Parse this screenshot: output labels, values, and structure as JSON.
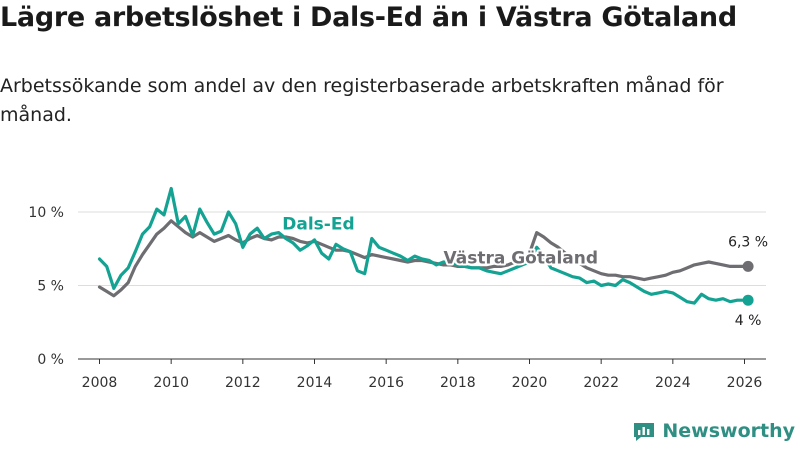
{
  "title": "Lägre arbetslöshet i Dals-Ed än i Västra Götaland",
  "subtitle": "Arbetssökande som andel av den registerbaserade arbetskraften månad för månad.",
  "brand": {
    "name": "Newsworthy"
  },
  "colors": {
    "dals_ed": "#14a393",
    "vastra_gotaland": "#6e6e72",
    "grid": "#dddddd",
    "axis": "#333333",
    "brand": "#2f8f83"
  },
  "chart_data": {
    "type": "line",
    "title": "Lägre arbetslöshet i Dals-Ed än i Västra Götaland",
    "xlabel": "",
    "ylabel": "",
    "xlim": [
      2007.4,
      2026.6
    ],
    "ylim": [
      0,
      12
    ],
    "x_ticks": [
      2008,
      2010,
      2012,
      2014,
      2016,
      2018,
      2020,
      2022,
      2024,
      2026
    ],
    "x_tick_labels": [
      "2008",
      "2010",
      "2012",
      "2014",
      "2016",
      "2018",
      "2020",
      "2022",
      "2024",
      "2026"
    ],
    "y_ticks": [
      0,
      5,
      10
    ],
    "y_tick_labels": [
      "0 %",
      "5 %",
      "10 %"
    ],
    "grid": true,
    "series": [
      {
        "name": "Dals-Ed",
        "label": "Dals-Ed",
        "end_label": "4 %",
        "x": [
          2008.0,
          2008.2,
          2008.4,
          2008.6,
          2008.8,
          2009.0,
          2009.2,
          2009.4,
          2009.6,
          2009.8,
          2010.0,
          2010.2,
          2010.4,
          2010.6,
          2010.8,
          2011.0,
          2011.2,
          2011.4,
          2011.6,
          2011.8,
          2012.0,
          2012.2,
          2012.4,
          2012.6,
          2012.8,
          2013.0,
          2013.2,
          2013.4,
          2013.6,
          2013.8,
          2014.0,
          2014.2,
          2014.4,
          2014.6,
          2014.8,
          2015.0,
          2015.2,
          2015.4,
          2015.6,
          2015.8,
          2016.0,
          2016.2,
          2016.4,
          2016.6,
          2016.8,
          2017.0,
          2017.2,
          2017.4,
          2017.6,
          2017.8,
          2018.0,
          2018.2,
          2018.4,
          2018.6,
          2018.8,
          2019.0,
          2019.2,
          2019.4,
          2019.6,
          2019.8,
          2020.0,
          2020.2,
          2020.4,
          2020.6,
          2020.8,
          2021.0,
          2021.2,
          2021.4,
          2021.6,
          2021.8,
          2022.0,
          2022.2,
          2022.4,
          2022.6,
          2022.8,
          2023.0,
          2023.2,
          2023.4,
          2023.6,
          2023.8,
          2024.0,
          2024.2,
          2024.4,
          2024.6,
          2024.8,
          2025.0,
          2025.2,
          2025.4,
          2025.6,
          2025.8,
          2026.1
        ],
        "y": [
          6.8,
          6.3,
          4.8,
          5.7,
          6.2,
          7.3,
          8.5,
          9.0,
          10.2,
          9.8,
          11.6,
          9.2,
          9.7,
          8.4,
          10.2,
          9.3,
          8.5,
          8.7,
          10.0,
          9.2,
          7.6,
          8.5,
          8.9,
          8.2,
          8.5,
          8.6,
          8.2,
          7.9,
          7.4,
          7.7,
          8.1,
          7.2,
          6.8,
          7.8,
          7.5,
          7.3,
          6.0,
          5.8,
          8.2,
          7.6,
          7.4,
          7.2,
          7.0,
          6.7,
          7.0,
          6.8,
          6.7,
          6.4,
          6.6,
          6.5,
          6.4,
          6.3,
          6.2,
          6.2,
          6.0,
          5.9,
          5.8,
          6.0,
          6.2,
          6.4,
          6.6,
          7.6,
          7.0,
          6.2,
          6.0,
          5.8,
          5.6,
          5.5,
          5.2,
          5.3,
          5.0,
          5.1,
          5.0,
          5.4,
          5.2,
          4.9,
          4.6,
          4.4,
          4.5,
          4.6,
          4.5,
          4.2,
          3.9,
          3.8,
          4.4,
          4.1,
          4.0,
          4.1,
          3.9,
          4.0,
          4.0
        ]
      },
      {
        "name": "Västra Götaland",
        "label": "Västra Götaland",
        "end_label": "6,3 %",
        "x": [
          2008.0,
          2008.2,
          2008.4,
          2008.6,
          2008.8,
          2009.0,
          2009.2,
          2009.4,
          2009.6,
          2009.8,
          2010.0,
          2010.2,
          2010.4,
          2010.6,
          2010.8,
          2011.0,
          2011.2,
          2011.4,
          2011.6,
          2011.8,
          2012.0,
          2012.2,
          2012.4,
          2012.6,
          2012.8,
          2013.0,
          2013.2,
          2013.4,
          2013.6,
          2013.8,
          2014.0,
          2014.2,
          2014.4,
          2014.6,
          2014.8,
          2015.0,
          2015.2,
          2015.4,
          2015.6,
          2015.8,
          2016.0,
          2016.2,
          2016.4,
          2016.6,
          2016.8,
          2017.0,
          2017.2,
          2017.4,
          2017.6,
          2017.8,
          2018.0,
          2018.2,
          2018.4,
          2018.6,
          2018.8,
          2019.0,
          2019.2,
          2019.4,
          2019.6,
          2019.8,
          2020.0,
          2020.2,
          2020.4,
          2020.6,
          2020.8,
          2021.0,
          2021.2,
          2021.4,
          2021.6,
          2021.8,
          2022.0,
          2022.2,
          2022.4,
          2022.6,
          2022.8,
          2023.0,
          2023.2,
          2023.4,
          2023.6,
          2023.8,
          2024.0,
          2024.2,
          2024.4,
          2024.6,
          2024.8,
          2025.0,
          2025.2,
          2025.4,
          2025.6,
          2025.8,
          2026.1
        ],
        "y": [
          4.9,
          4.6,
          4.3,
          4.7,
          5.2,
          6.3,
          7.1,
          7.8,
          8.5,
          8.9,
          9.4,
          9.0,
          8.6,
          8.3,
          8.6,
          8.3,
          8.0,
          8.2,
          8.4,
          8.1,
          7.9,
          8.2,
          8.4,
          8.2,
          8.1,
          8.3,
          8.3,
          8.2,
          8.0,
          7.9,
          8.0,
          7.8,
          7.6,
          7.4,
          7.4,
          7.3,
          7.1,
          6.9,
          7.1,
          7.0,
          6.9,
          6.8,
          6.7,
          6.6,
          6.7,
          6.7,
          6.6,
          6.5,
          6.4,
          6.4,
          6.3,
          6.3,
          6.2,
          6.2,
          6.2,
          6.3,
          6.3,
          6.4,
          6.6,
          6.8,
          7.2,
          8.6,
          8.3,
          7.9,
          7.6,
          7.2,
          6.8,
          6.5,
          6.2,
          6.0,
          5.8,
          5.7,
          5.7,
          5.6,
          5.6,
          5.5,
          5.4,
          5.5,
          5.6,
          5.7,
          5.9,
          6.0,
          6.2,
          6.4,
          6.5,
          6.6,
          6.5,
          6.4,
          6.3,
          6.3,
          6.3
        ]
      }
    ]
  }
}
